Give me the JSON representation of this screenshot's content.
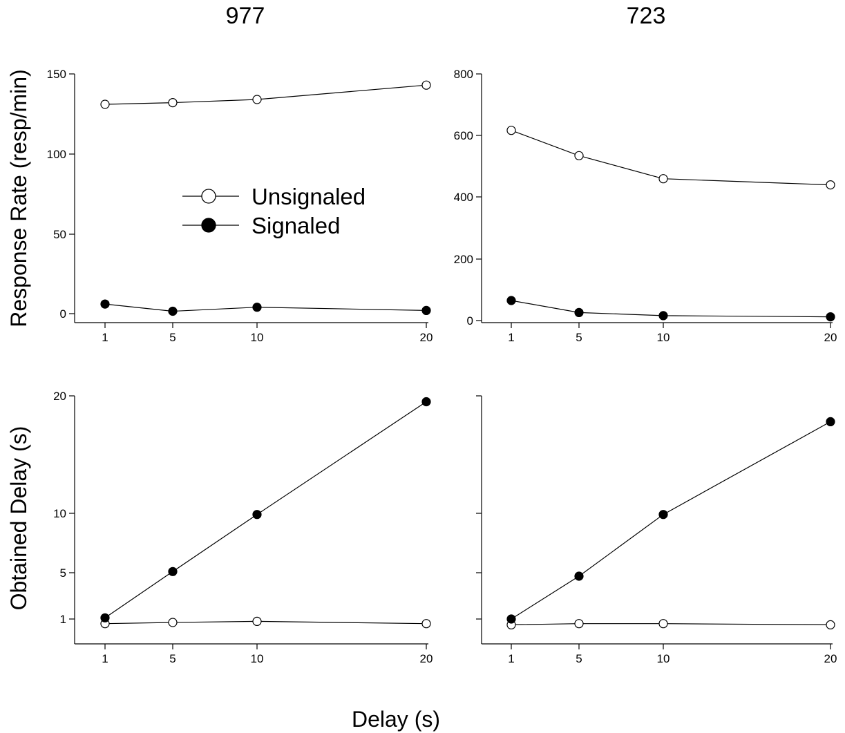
{
  "figure": {
    "columns": [
      {
        "title": "977"
      },
      {
        "title": "723"
      }
    ],
    "ylabel_top": "Response Rate (resp/min)",
    "ylabel_bottom": "Obtained Delay (s)",
    "xlabel": "Delay (s)",
    "legend": [
      {
        "label": "Unsignaled",
        "marker": "open-circle"
      },
      {
        "label": "Signaled",
        "marker": "filled-circle"
      }
    ]
  },
  "chart_data": [
    {
      "type": "line",
      "panel": "top-left",
      "title": "977",
      "ylabel": "Response Rate (resp/min)",
      "xlabel": "Delay (s)",
      "x": [
        1,
        5,
        10,
        20
      ],
      "xticks": [
        "1",
        "5",
        "10",
        "20"
      ],
      "ylim": [
        -5,
        150
      ],
      "yticks": [
        "0",
        "50",
        "100",
        "150"
      ],
      "legend_position": "upper-center",
      "series": [
        {
          "name": "Unsignaled",
          "marker": "open-circle",
          "values": [
            131,
            132,
            134,
            143
          ]
        },
        {
          "name": "Signaled",
          "marker": "filled-circle",
          "values": [
            6,
            1.5,
            4,
            2
          ]
        }
      ]
    },
    {
      "type": "line",
      "panel": "top-right",
      "title": "723",
      "ylabel": "",
      "xlabel": "Delay (s)",
      "x": [
        1,
        5,
        10,
        20
      ],
      "xticks": [
        "1",
        "5",
        "10",
        "20"
      ],
      "ylim": [
        -5,
        800
      ],
      "yticks": [
        "0",
        "200",
        "400",
        "600",
        "800"
      ],
      "series": [
        {
          "name": "Unsignaled",
          "marker": "open-circle",
          "values": [
            617,
            535,
            460,
            440
          ]
        },
        {
          "name": "Signaled",
          "marker": "filled-circle",
          "values": [
            65,
            26,
            16,
            12
          ]
        }
      ]
    },
    {
      "type": "line",
      "panel": "bottom-left",
      "title": "",
      "ylabel": "Obtained Delay (s)",
      "xlabel": "Delay (s)",
      "x": [
        1,
        5,
        10,
        20
      ],
      "xticks": [
        "1",
        "5",
        "10",
        "20"
      ],
      "ylim": [
        0,
        20
      ],
      "yticks": [
        "1",
        "5",
        "10",
        "20"
      ],
      "y_scale": "nonlinear",
      "series": [
        {
          "name": "Unsignaled",
          "marker": "open-circle",
          "values": [
            0.6,
            0.7,
            0.8,
            0.6
          ]
        },
        {
          "name": "Signaled",
          "marker": "filled-circle",
          "values": [
            1.1,
            5.1,
            9.9,
            19.5
          ]
        }
      ]
    },
    {
      "type": "line",
      "panel": "bottom-right",
      "title": "",
      "ylabel": "",
      "xlabel": "Delay (s)",
      "x": [
        1,
        5,
        10,
        20
      ],
      "xticks": [
        "1",
        "5",
        "10",
        "20"
      ],
      "ylim": [
        0,
        20
      ],
      "yticks": [
        "",
        "",
        "",
        ""
      ],
      "y_scale": "nonlinear",
      "series": [
        {
          "name": "Unsignaled",
          "marker": "open-circle",
          "values": [
            0.5,
            0.6,
            0.6,
            0.5
          ]
        },
        {
          "name": "Signaled",
          "marker": "filled-circle",
          "values": [
            1,
            4.7,
            9.9,
            17.8
          ]
        }
      ]
    }
  ]
}
